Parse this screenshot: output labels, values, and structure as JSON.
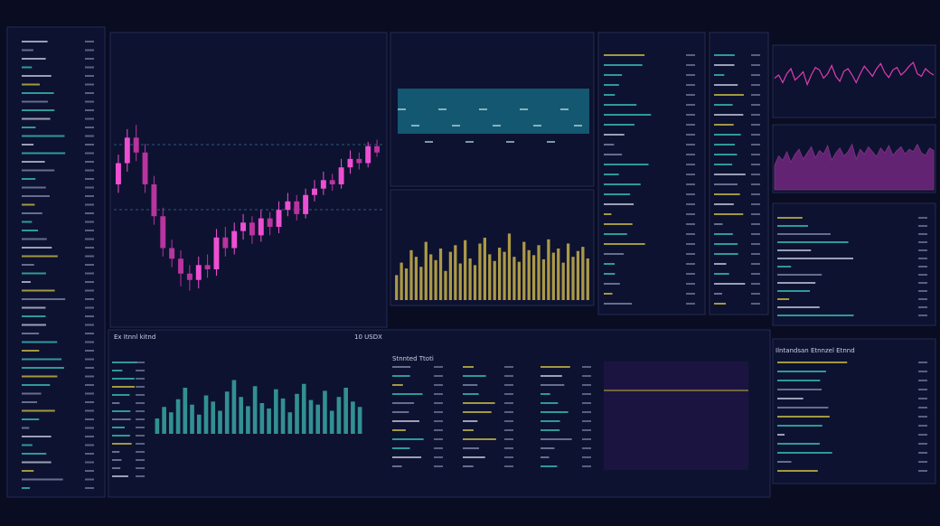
{
  "labels": {
    "candle_panel": "Ex Itnnl kitnd",
    "ticker": "10 USDX",
    "volume_panel": "Stnnted Ttoti",
    "right_panel": "Ilntandsan Etnnzel Etnnd"
  },
  "chart_data": [
    {
      "type": "candlestick",
      "open": [
        60,
        70,
        82,
        75,
        60,
        45,
        30,
        25,
        18,
        15,
        22,
        20,
        35,
        30,
        38,
        42,
        36,
        44,
        40,
        48,
        52,
        46,
        55,
        58,
        62,
        60,
        68,
        72,
        70,
        78
      ],
      "high": [
        74,
        86,
        88,
        79,
        64,
        49,
        34,
        29,
        22,
        26,
        27,
        39,
        40,
        42,
        46,
        45,
        48,
        47,
        52,
        56,
        55,
        58,
        62,
        66,
        65,
        72,
        76,
        75,
        80,
        81
      ],
      "low": [
        56,
        66,
        71,
        56,
        41,
        26,
        21,
        12,
        10,
        11,
        16,
        17,
        26,
        27,
        34,
        32,
        33,
        36,
        37,
        45,
        43,
        44,
        52,
        55,
        57,
        58,
        65,
        67,
        68,
        73
      ],
      "close": [
        70,
        82,
        75,
        60,
        45,
        30,
        25,
        18,
        15,
        22,
        20,
        35,
        30,
        38,
        42,
        36,
        44,
        40,
        48,
        52,
        46,
        55,
        58,
        62,
        60,
        68,
        72,
        70,
        78,
        75
      ],
      "ylim": [
        0,
        100
      ],
      "up_color": "#ee4fd2",
      "down_color": "#b8349f"
    },
    {
      "type": "bar",
      "values": [
        30,
        45,
        38,
        60,
        52,
        40,
        70,
        55,
        48,
        62,
        35,
        58,
        66,
        44,
        72,
        50,
        42,
        68,
        75,
        55,
        47,
        63,
        58,
        80,
        52,
        46,
        70,
        60,
        54,
        66,
        49,
        73,
        57,
        62,
        45,
        68,
        52,
        59,
        64,
        50
      ],
      "ylim": [
        0,
        100
      ],
      "color": "#c8b24a"
    },
    {
      "type": "bar",
      "values": [
        20,
        35,
        28,
        45,
        60,
        38,
        25,
        50,
        42,
        30,
        55,
        70,
        48,
        36,
        62,
        40,
        33,
        58,
        46,
        28,
        52,
        65,
        44,
        38,
        56,
        30,
        48,
        60,
        42,
        35
      ],
      "ylim": [
        0,
        100
      ],
      "color": "#3aa7a2"
    },
    {
      "type": "line",
      "values": [
        55,
        60,
        48,
        62,
        70,
        52,
        58,
        65,
        45,
        60,
        72,
        68,
        55,
        62,
        75,
        58,
        50,
        66,
        70,
        60,
        48,
        62,
        74,
        66,
        58,
        70,
        78,
        64,
        56,
        68,
        72,
        60,
        66,
        74,
        80,
        62,
        58,
        70,
        64,
        60
      ],
      "ylim": [
        0,
        100
      ],
      "color": "#e03cb0"
    },
    {
      "type": "area",
      "values": [
        40,
        55,
        48,
        62,
        45,
        58,
        66,
        50,
        60,
        70,
        52,
        64,
        58,
        72,
        48,
        60,
        68,
        55,
        62,
        74,
        50,
        66,
        58,
        70,
        62,
        54,
        68,
        60,
        72,
        56,
        64,
        70,
        58,
        66,
        62,
        74,
        60,
        56,
        68,
        64
      ],
      "ylim": [
        0,
        100
      ],
      "color": "#9a2f9e"
    }
  ]
}
